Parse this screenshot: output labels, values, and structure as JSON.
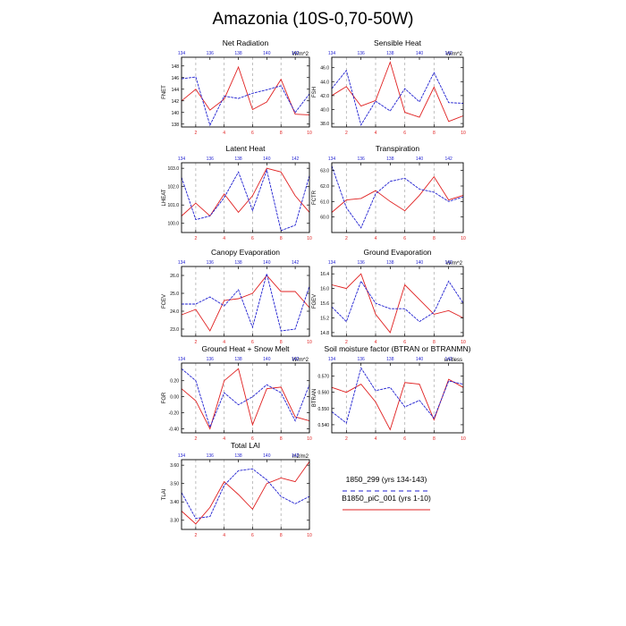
{
  "title": "Amazonia (10S-0,70-50W)",
  "colors": {
    "control": "#e02020",
    "experiment": "#1f1fd0",
    "frame": "#000000",
    "grid": "#b0b0b0",
    "top_axis": "#1f1fd0",
    "bottom_axis": "#e02020"
  },
  "legend": {
    "entries": [
      {
        "label": "1850_299 (yrs 134-143)",
        "color": "#1f1fd0",
        "style": "dashed"
      },
      {
        "label": "B1850_piC_001 (yrs 1-10)",
        "color": "#e02020",
        "style": "solid"
      }
    ]
  },
  "chart_data": [
    {
      "type": "line",
      "title": "Net Radiation",
      "ylabel": "FNET",
      "units": "W/m^2",
      "x": [
        1,
        2,
        3,
        4,
        5,
        6,
        7,
        8,
        9,
        10
      ],
      "xlim": [
        1,
        10
      ],
      "ylim": [
        137.5,
        149.5
      ],
      "xticks_bottom": [
        "2",
        "4",
        "6",
        "8",
        "10"
      ],
      "xticks_top": [
        "134",
        "136",
        "138",
        "140",
        "142"
      ],
      "yticks": [
        "138",
        "140",
        "142",
        "144",
        "146",
        "148"
      ],
      "ytick_values": [
        138,
        140,
        142,
        144,
        146,
        148
      ],
      "vlines": [
        2,
        4,
        6,
        8
      ],
      "series": [
        {
          "name": "1850_299 (yrs 134-143)",
          "values": [
            145.8,
            146.1,
            137.8,
            142.8,
            142.4,
            143.3,
            143.9,
            144.6,
            140.0,
            143.2
          ]
        },
        {
          "name": "B1850_piC_001 (yrs 1-10)",
          "values": [
            142.0,
            144.0,
            140.4,
            142.3,
            147.8,
            140.5,
            141.8,
            145.7,
            139.7,
            139.6
          ]
        }
      ]
    },
    {
      "type": "line",
      "title": "Sensible Heat",
      "ylabel": "FSH",
      "units": "W/m^2",
      "x": [
        1,
        2,
        3,
        4,
        5,
        6,
        7,
        8,
        9,
        10
      ],
      "xlim": [
        1,
        10
      ],
      "ylim": [
        37.5,
        47.5
      ],
      "xticks_bottom": [
        "2",
        "4",
        "6",
        "8",
        "10"
      ],
      "xticks_top": [
        "134",
        "136",
        "138",
        "140",
        "142"
      ],
      "yticks": [
        "38.0",
        "40.0",
        "42.0",
        "44.0",
        "46.0"
      ],
      "ytick_values": [
        38,
        40,
        42,
        44,
        46
      ],
      "vlines": [
        2,
        4,
        6,
        8
      ],
      "series": [
        {
          "name": "1850_299 (yrs 134-143)",
          "values": [
            43.0,
            45.6,
            37.8,
            41.2,
            39.8,
            43.0,
            41.1,
            45.3,
            41.0,
            40.9
          ]
        },
        {
          "name": "B1850_piC_001 (yrs 1-10)",
          "values": [
            42.0,
            43.3,
            40.5,
            41.3,
            46.8,
            39.6,
            38.9,
            43.2,
            38.3,
            39.1
          ]
        }
      ]
    },
    {
      "type": "line",
      "title": "Latent Heat",
      "ylabel": "LHEAT",
      "x": [
        1,
        2,
        3,
        4,
        5,
        6,
        7,
        8,
        9,
        10
      ],
      "xlim": [
        1,
        10
      ],
      "ylim": [
        99.5,
        103.3
      ],
      "xticks_bottom": [
        "2",
        "4",
        "6",
        "8",
        "10"
      ],
      "xticks_top": [
        "134",
        "136",
        "138",
        "140",
        "142"
      ],
      "yticks": [
        "100.0",
        "101.0",
        "102.0",
        "103.0"
      ],
      "ytick_values": [
        100,
        101,
        102,
        103
      ],
      "vlines": [
        2,
        4,
        6,
        8
      ],
      "series": [
        {
          "name": "1850_299 (yrs 134-143)",
          "values": [
            102.5,
            100.2,
            100.4,
            101.4,
            102.8,
            100.7,
            102.9,
            99.6,
            99.9,
            102.6
          ]
        },
        {
          "name": "B1850_piC_001 (yrs 1-10)",
          "values": [
            100.4,
            101.1,
            100.4,
            101.6,
            100.6,
            101.5,
            103.0,
            102.8,
            101.5,
            100.6
          ]
        }
      ]
    },
    {
      "type": "line",
      "title": "Transpiration",
      "ylabel": "FCTR",
      "x": [
        1,
        2,
        3,
        4,
        5,
        6,
        7,
        8,
        9,
        10
      ],
      "xlim": [
        1,
        10
      ],
      "ylim": [
        59.0,
        63.5
      ],
      "xticks_bottom": [
        "2",
        "4",
        "6",
        "8",
        "10"
      ],
      "xticks_top": [
        "134",
        "136",
        "138",
        "140",
        "142"
      ],
      "yticks": [
        "60.0",
        "61.0",
        "62.0",
        "63.0"
      ],
      "ytick_values": [
        60,
        61,
        62,
        63
      ],
      "vlines": [
        2,
        4,
        6,
        8
      ],
      "series": [
        {
          "name": "1850_299 (yrs 134-143)",
          "values": [
            63.3,
            60.6,
            59.3,
            61.5,
            62.3,
            62.5,
            61.8,
            61.6,
            61.0,
            61.3
          ]
        },
        {
          "name": "B1850_piC_001 (yrs 1-10)",
          "values": [
            60.3,
            61.1,
            61.2,
            61.7,
            61.0,
            60.4,
            61.4,
            62.6,
            61.1,
            61.4
          ]
        }
      ]
    },
    {
      "type": "line",
      "title": "Canopy Evaporation",
      "ylabel": "FCEV",
      "x": [
        1,
        2,
        3,
        4,
        5,
        6,
        7,
        8,
        9,
        10
      ],
      "xlim": [
        1,
        10
      ],
      "ylim": [
        22.6,
        26.5
      ],
      "xticks_bottom": [
        "2",
        "4",
        "6",
        "8",
        "10"
      ],
      "xticks_top": [
        "134",
        "136",
        "138",
        "140",
        "142"
      ],
      "yticks": [
        "23.0",
        "24.0",
        "25.0",
        "26.0"
      ],
      "ytick_values": [
        23,
        24,
        25,
        26
      ],
      "vlines": [
        2,
        4,
        6,
        8
      ],
      "series": [
        {
          "name": "1850_299 (yrs 134-143)",
          "values": [
            24.4,
            24.4,
            24.8,
            24.3,
            25.2,
            23.1,
            26.1,
            22.9,
            23.0,
            25.4
          ]
        },
        {
          "name": "B1850_piC_001 (yrs 1-10)",
          "values": [
            23.8,
            24.1,
            22.9,
            24.6,
            24.7,
            25.0,
            26.0,
            25.1,
            25.1,
            24.2
          ]
        }
      ]
    },
    {
      "type": "line",
      "title": "Ground Evaporation",
      "ylabel": "FGEV",
      "units": "W/m^2",
      "x": [
        1,
        2,
        3,
        4,
        5,
        6,
        7,
        8,
        9,
        10
      ],
      "xlim": [
        1,
        10
      ],
      "ylim": [
        14.7,
        16.6
      ],
      "xticks_bottom": [
        "2",
        "4",
        "6",
        "8",
        "10"
      ],
      "xticks_top": [
        "134",
        "136",
        "138",
        "140",
        "142"
      ],
      "yticks": [
        "14.8",
        "15.2",
        "15.6",
        "16.0",
        "16.4"
      ],
      "ytick_values": [
        14.8,
        15.2,
        15.6,
        16.0,
        16.4
      ],
      "vlines": [
        2,
        4,
        6,
        8
      ],
      "series": [
        {
          "name": "1850_299 (yrs 134-143)",
          "values": [
            15.5,
            15.1,
            16.2,
            15.6,
            15.45,
            15.45,
            15.1,
            15.35,
            16.2,
            15.6
          ]
        },
        {
          "name": "B1850_piC_001 (yrs 1-10)",
          "values": [
            16.1,
            16.0,
            16.4,
            15.3,
            14.8,
            16.1,
            15.7,
            15.3,
            15.4,
            15.2
          ]
        }
      ]
    },
    {
      "type": "line",
      "title": "Ground Heat + Snow Melt",
      "ylabel": "FGR",
      "units": "W/m^2",
      "x": [
        1,
        2,
        3,
        4,
        5,
        6,
        7,
        8,
        9,
        10
      ],
      "xlim": [
        1,
        10
      ],
      "ylim": [
        -0.45,
        0.42
      ],
      "xticks_bottom": [
        "2",
        "4",
        "6",
        "8",
        "10"
      ],
      "xticks_top": [
        "134",
        "136",
        "138",
        "140",
        "142"
      ],
      "yticks": [
        "-0.40",
        "-0.20",
        "0.00",
        "0.20"
      ],
      "ytick_values": [
        -0.4,
        -0.2,
        0.0,
        0.2
      ],
      "vlines": [
        2,
        4,
        6,
        8
      ],
      "series": [
        {
          "name": "1850_299 (yrs 134-143)",
          "values": [
            0.35,
            0.2,
            -0.38,
            0.05,
            -0.1,
            0.0,
            0.15,
            0.05,
            -0.3,
            0.15
          ]
        },
        {
          "name": "B1850_piC_001 (yrs 1-10)",
          "values": [
            0.1,
            -0.05,
            -0.4,
            0.2,
            0.35,
            -0.35,
            0.1,
            0.12,
            -0.25,
            -0.3
          ]
        }
      ]
    },
    {
      "type": "line",
      "title": "Soil moisture factor (BTRAN or BTRANMN)",
      "ylabel": "BTRAN",
      "units": "unitless",
      "x": [
        1,
        2,
        3,
        4,
        5,
        6,
        7,
        8,
        9,
        10
      ],
      "xlim": [
        1,
        10
      ],
      "ylim": [
        0.535,
        0.578
      ],
      "xticks_bottom": [
        "2",
        "4",
        "6",
        "8",
        "10"
      ],
      "xticks_top": [
        "134",
        "136",
        "138",
        "140",
        "142"
      ],
      "yticks": [
        "0.540",
        "0.550",
        "0.560",
        "0.570"
      ],
      "ytick_values": [
        0.54,
        0.55,
        0.56,
        0.57
      ],
      "vlines": [
        2,
        4,
        6,
        8
      ],
      "series": [
        {
          "name": "1850_299 (yrs 134-143)",
          "values": [
            0.548,
            0.541,
            0.575,
            0.561,
            0.563,
            0.551,
            0.555,
            0.544,
            0.567,
            0.565
          ]
        },
        {
          "name": "B1850_piC_001 (yrs 1-10)",
          "values": [
            0.563,
            0.56,
            0.565,
            0.554,
            0.537,
            0.566,
            0.565,
            0.543,
            0.568,
            0.563
          ]
        }
      ]
    },
    {
      "type": "line",
      "title": "Total LAI",
      "ylabel": "TLAI",
      "units": "m2/m2",
      "x": [
        1,
        2,
        3,
        4,
        5,
        6,
        7,
        8,
        9,
        10
      ],
      "xlim": [
        1,
        10
      ],
      "ylim": [
        3.25,
        3.63
      ],
      "xticks_bottom": [
        "2",
        "4",
        "6",
        "8",
        "10"
      ],
      "xticks_top": [
        "134",
        "136",
        "138",
        "140",
        "142"
      ],
      "yticks": [
        "3.30",
        "3.40",
        "3.50",
        "3.60"
      ],
      "ytick_values": [
        3.3,
        3.4,
        3.5,
        3.6
      ],
      "vlines": [
        2,
        4,
        6,
        8
      ],
      "series": [
        {
          "name": "1850_299 (yrs 134-143)",
          "values": [
            3.45,
            3.31,
            3.32,
            3.49,
            3.57,
            3.58,
            3.52,
            3.43,
            3.39,
            3.43
          ]
        },
        {
          "name": "B1850_piC_001 (yrs 1-10)",
          "values": [
            3.35,
            3.28,
            3.37,
            3.51,
            3.44,
            3.36,
            3.5,
            3.53,
            3.51,
            3.62
          ]
        }
      ]
    }
  ]
}
